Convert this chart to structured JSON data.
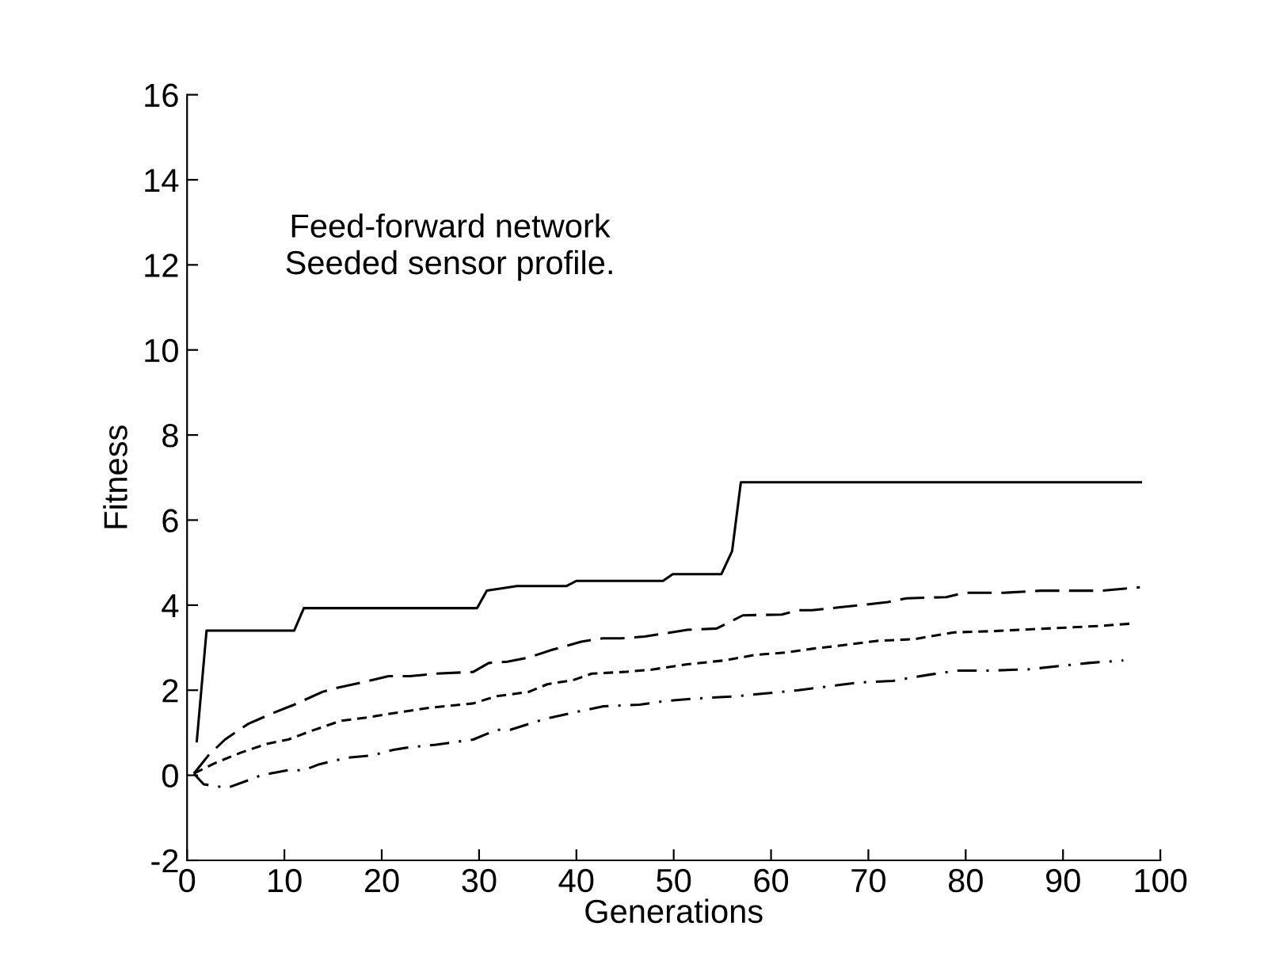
{
  "chart_data": {
    "type": "line",
    "xlabel": "Generations",
    "ylabel": "Fitness",
    "annotations": [
      "Feed-forward network\nSeeded sensor profile."
    ],
    "xlim": [
      0,
      100
    ],
    "xticks": [
      0,
      10,
      20,
      30,
      40,
      50,
      60,
      70,
      80,
      90,
      100
    ],
    "ylim": [
      -2,
      16
    ],
    "yticks": [
      -2,
      0,
      2,
      4,
      6,
      8,
      10,
      12,
      14,
      16
    ],
    "grid": false,
    "legend": false,
    "series": [
      {
        "color": "#000000",
        "line_style": "solid",
        "x": [
          1,
          2,
          11,
          12,
          29.8,
          30.8,
          33.9,
          39,
          40,
          48.9,
          49.9,
          54.9,
          56,
          56.9,
          98
        ],
        "values": [
          0.8,
          3.4,
          3.4,
          3.93,
          3.93,
          4.34,
          4.45,
          4.45,
          4.57,
          4.57,
          4.73,
          4.73,
          5.27,
          6.89,
          6.89
        ]
      },
      {
        "color": "#000000",
        "line_style": "dashed",
        "x": [
          0.7,
          2.2,
          3.9,
          5.5,
          6.3,
          8.8,
          10.9,
          13.9,
          15.5,
          18.5,
          20.7,
          22.9,
          25.6,
          29.4,
          31,
          32.9,
          35.1,
          37.5,
          40.5,
          42.7,
          44.6,
          47,
          51.4,
          54.4,
          57.1,
          61.1,
          62.8,
          64.2,
          67.1,
          72,
          73.9,
          78,
          79.9,
          83.9,
          87.7,
          94,
          97.9
        ],
        "values": [
          0.04,
          0.47,
          0.84,
          1.09,
          1.21,
          1.46,
          1.65,
          1.96,
          2.06,
          2.21,
          2.33,
          2.33,
          2.39,
          2.43,
          2.64,
          2.67,
          2.77,
          2.95,
          3.14,
          3.22,
          3.22,
          3.26,
          3.42,
          3.45,
          3.76,
          3.78,
          3.88,
          3.88,
          3.95,
          4.07,
          4.16,
          4.19,
          4.29,
          4.29,
          4.34,
          4.34,
          4.42
        ]
      },
      {
        "color": "#000000",
        "line_style": "dashed",
        "x": [
          0.7,
          2.8,
          5.5,
          8.2,
          10.4,
          12.6,
          15.8,
          18.5,
          21.2,
          25,
          29.4,
          31.8,
          35.1,
          37,
          39.7,
          41.6,
          44.9,
          47.6,
          51.4,
          55.2,
          58.4,
          61.7,
          64.4,
          66,
          70.9,
          74.7,
          78.8,
          82.9,
          88.3,
          93.7,
          97.3
        ],
        "values": [
          0.04,
          0.28,
          0.53,
          0.74,
          0.84,
          1.03,
          1.28,
          1.36,
          1.46,
          1.59,
          1.69,
          1.86,
          1.96,
          2.14,
          2.24,
          2.39,
          2.43,
          2.48,
          2.61,
          2.7,
          2.83,
          2.89,
          2.98,
          3.02,
          3.16,
          3.2,
          3.36,
          3.39,
          3.45,
          3.51,
          3.57
        ]
      },
      {
        "color": "#000000",
        "line_style": "dashed",
        "x": [
          0.7,
          1.7,
          2.8,
          4.1,
          6.6,
          7.6,
          10.4,
          12,
          13.6,
          16.4,
          19.1,
          21.2,
          22.9,
          25.6,
          29.4,
          31.8,
          33.2,
          36.7,
          39.4,
          42.7,
          46.5,
          49.2,
          52.7,
          56.5,
          59.2,
          62.8,
          66.6,
          69,
          72.5,
          76.4,
          79.1,
          82.3,
          86.4,
          92.6,
          96.2
        ],
        "values": [
          0.04,
          -0.21,
          -0.25,
          -0.3,
          -0.09,
          0.0,
          0.12,
          0.12,
          0.26,
          0.41,
          0.47,
          0.6,
          0.66,
          0.72,
          0.84,
          1.07,
          1.07,
          1.32,
          1.46,
          1.62,
          1.66,
          1.75,
          1.81,
          1.86,
          1.92,
          2.0,
          2.11,
          2.18,
          2.22,
          2.37,
          2.46,
          2.46,
          2.49,
          2.64,
          2.7
        ]
      }
    ]
  }
}
